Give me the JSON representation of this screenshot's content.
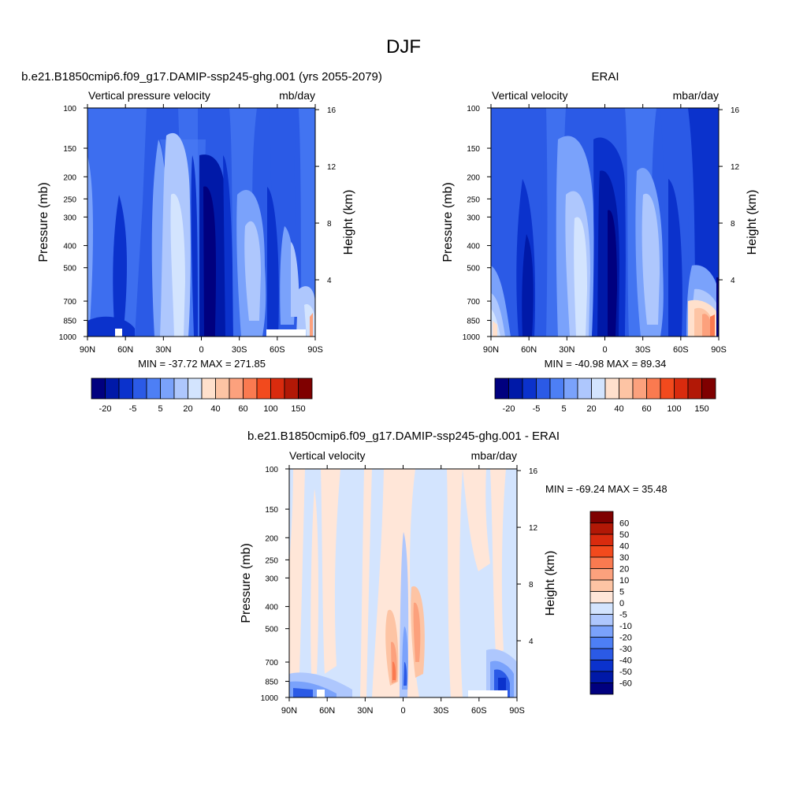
{
  "figure_title": "DJF",
  "colors": {
    "blues": [
      "#00007f",
      "#0019a8",
      "#0b32cc",
      "#2b5ae6",
      "#4d7ff5",
      "#7aa2fb",
      "#aec7fd",
      "#d3e4fe"
    ],
    "reds": [
      "#ffe0cc",
      "#fdc4a4",
      "#fca17d",
      "#fa7a50",
      "#f24a1d",
      "#d92b0e",
      "#b21806",
      "#7f0000"
    ],
    "diff_blues": [
      "#00007f",
      "#0019a8",
      "#0b32cc",
      "#2b5ae6",
      "#4d7ff5",
      "#7aa2fb",
      "#aec7fd",
      "#d3e4fe"
    ],
    "diff_reds": [
      "#ffe6d8",
      "#fdc4a4",
      "#fca17d",
      "#fa7a50",
      "#f24a1d",
      "#d92b0e",
      "#b21806",
      "#7f0000"
    ]
  },
  "chart_data": [
    {
      "type": "heatmap",
      "title": "b.e21.B1850cmip6.f09_g17.DAMIP-ssp245-ghg.001 (yrs 2055-2079)",
      "left_label": "Vertical pressure velocity",
      "right_label": "mb/day",
      "ylabel": "Pressure (mb)",
      "ylabel_right": "Height (km)",
      "x_ticks": [
        "90N",
        "60N",
        "30N",
        "0",
        "30S",
        "60S",
        "90S"
      ],
      "y_ticks": [
        "100",
        "150",
        "200",
        "250",
        "300",
        "400",
        "500",
        "700",
        "850",
        "1000"
      ],
      "y_ticks_right": [
        "16",
        "12",
        "8",
        "4"
      ],
      "ylim": [
        1000,
        100
      ],
      "xlim": [
        90,
        -90
      ],
      "min_max": "MIN = -37.72  MAX = 271.85",
      "colorbar_labels": [
        "-20",
        "-5",
        "5",
        "20",
        "40",
        "60",
        "100",
        "150"
      ]
    },
    {
      "type": "heatmap",
      "title": "ERAI",
      "left_label": "Vertical velocity",
      "right_label": "mbar/day",
      "ylabel": "Pressure (mb)",
      "ylabel_right": "Height (km)",
      "x_ticks": [
        "90N",
        "60N",
        "30N",
        "0",
        "30S",
        "60S",
        "90S"
      ],
      "y_ticks": [
        "100",
        "150",
        "200",
        "250",
        "300",
        "400",
        "500",
        "700",
        "850",
        "1000"
      ],
      "y_ticks_right": [
        "16",
        "12",
        "8",
        "4"
      ],
      "ylim": [
        1000,
        100
      ],
      "xlim": [
        90,
        -90
      ],
      "min_max": "MIN = -40.98  MAX =  89.34",
      "colorbar_labels": [
        "-20",
        "-5",
        "5",
        "20",
        "40",
        "60",
        "100",
        "150"
      ]
    },
    {
      "type": "heatmap",
      "title": "b.e21.B1850cmip6.f09_g17.DAMIP-ssp245-ghg.001 - ERAI",
      "left_label": "Vertical velocity",
      "right_label": "mbar/day",
      "ylabel": "Pressure (mb)",
      "ylabel_right": "Height (km)",
      "x_ticks": [
        "90N",
        "60N",
        "30N",
        "0",
        "30S",
        "60S",
        "90S"
      ],
      "y_ticks": [
        "100",
        "150",
        "200",
        "250",
        "300",
        "400",
        "500",
        "700",
        "850",
        "1000"
      ],
      "y_ticks_right": [
        "16",
        "12",
        "8",
        "4"
      ],
      "ylim": [
        1000,
        100
      ],
      "xlim": [
        90,
        -90
      ],
      "min_max": "MIN = -69.24  MAX =  35.48",
      "colorbar_labels": [
        "60",
        "50",
        "40",
        "30",
        "20",
        "10",
        "5",
        "0",
        "-5",
        "-10",
        "-20",
        "-30",
        "-40",
        "-50",
        "-60"
      ]
    }
  ]
}
